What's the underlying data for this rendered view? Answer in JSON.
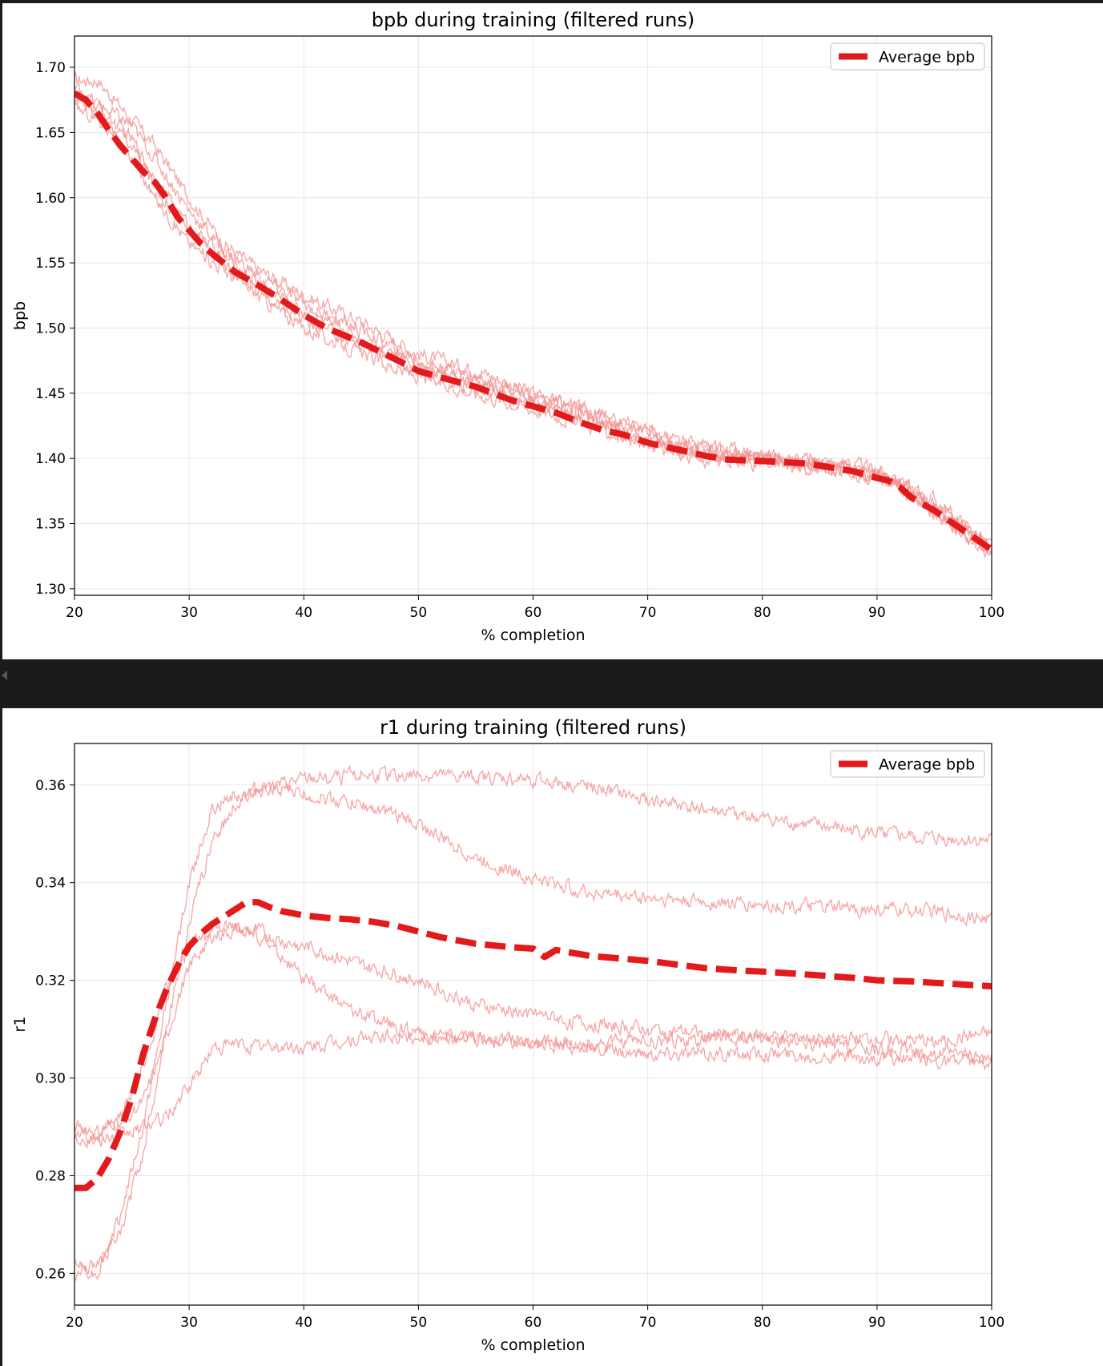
{
  "charts": [
    {
      "type": "line",
      "title": "bpb during training (filtered runs)",
      "xlabel": "% completion",
      "ylabel": "bpb",
      "xlim": [
        20,
        100
      ],
      "ylim": [
        1.295,
        1.724
      ],
      "xticks": [
        20,
        30,
        40,
        50,
        60,
        70,
        80,
        90,
        100
      ],
      "yticks": [
        1.3,
        1.35,
        1.4,
        1.45,
        1.5,
        1.55,
        1.6,
        1.65,
        1.7
      ],
      "ytick_decimals": 2,
      "grid": true,
      "legend": {
        "position": "top-right",
        "label": "Average bpb"
      },
      "colors": {
        "average": "#e31a1c",
        "runs": "#f28d8d"
      },
      "chart_data": {
        "type": "line",
        "average": {
          "name": "Average bpb",
          "x": [
            20,
            21,
            22,
            23,
            24,
            25,
            26,
            27,
            28,
            29,
            30,
            31,
            32,
            34,
            36,
            38,
            40,
            42,
            45,
            48,
            50,
            52,
            55,
            58,
            60,
            62,
            64,
            66,
            68,
            70,
            72,
            75,
            77,
            80,
            82,
            84,
            86,
            88,
            90,
            91,
            92,
            93,
            95,
            97,
            100
          ],
          "y": [
            1.68,
            1.675,
            1.665,
            1.652,
            1.64,
            1.63,
            1.62,
            1.612,
            1.6,
            1.585,
            1.575,
            1.565,
            1.557,
            1.543,
            1.533,
            1.522,
            1.51,
            1.5,
            1.489,
            1.476,
            1.467,
            1.462,
            1.455,
            1.445,
            1.44,
            1.435,
            1.428,
            1.422,
            1.418,
            1.412,
            1.408,
            1.402,
            1.399,
            1.398,
            1.397,
            1.396,
            1.393,
            1.39,
            1.385,
            1.383,
            1.378,
            1.37,
            1.36,
            1.348,
            1.33
          ]
        },
        "runs": [
          {
            "x": [
              20,
              22,
              25,
              27,
              30,
              33,
              36,
              40,
              45,
              50,
              55,
              60,
              65,
              70,
              75,
              80,
              85,
              90,
              92,
              95,
              100
            ],
            "y": [
              1.69,
              1.69,
              1.66,
              1.64,
              1.6,
              1.565,
              1.545,
              1.525,
              1.505,
              1.48,
              1.468,
              1.45,
              1.435,
              1.42,
              1.408,
              1.402,
              1.398,
              1.392,
              1.382,
              1.368,
              1.332
            ]
          },
          {
            "x": [
              20,
              22,
              25,
              27,
              30,
              33,
              36,
              40,
              45,
              50,
              55,
              60,
              65,
              70,
              75,
              80,
              85,
              90,
              92,
              95,
              100
            ],
            "y": [
              1.675,
              1.67,
              1.645,
              1.615,
              1.578,
              1.555,
              1.535,
              1.512,
              1.492,
              1.472,
              1.458,
              1.445,
              1.432,
              1.415,
              1.405,
              1.4,
              1.396,
              1.387,
              1.378,
              1.362,
              1.33
            ]
          },
          {
            "x": [
              20,
              22,
              25,
              27,
              30,
              33,
              36,
              40,
              45,
              50,
              55,
              60,
              65,
              70,
              75,
              80,
              85,
              90,
              92,
              95,
              100
            ],
            "y": [
              1.68,
              1.665,
              1.63,
              1.6,
              1.565,
              1.545,
              1.525,
              1.5,
              1.48,
              1.462,
              1.45,
              1.438,
              1.425,
              1.41,
              1.398,
              1.396,
              1.392,
              1.386,
              1.378,
              1.36,
              1.325
            ]
          },
          {
            "x": [
              20,
              22,
              25,
              27,
              30,
              33,
              36,
              40,
              45,
              50,
              55,
              60,
              65,
              70,
              75,
              80,
              85,
              90,
              92,
              95,
              100
            ],
            "y": [
              1.685,
              1.672,
              1.655,
              1.63,
              1.59,
              1.56,
              1.54,
              1.518,
              1.498,
              1.475,
              1.462,
              1.448,
              1.436,
              1.42,
              1.41,
              1.403,
              1.397,
              1.39,
              1.38,
              1.365,
              1.333
            ]
          },
          {
            "x": [
              20,
              22,
              25,
              27,
              30,
              33,
              36,
              40,
              45,
              50,
              55,
              60,
              65,
              70,
              75,
              80,
              85,
              90,
              92,
              95,
              100
            ],
            "y": [
              1.67,
              1.66,
              1.64,
              1.61,
              1.575,
              1.55,
              1.53,
              1.505,
              1.488,
              1.468,
              1.455,
              1.442,
              1.428,
              1.412,
              1.402,
              1.398,
              1.394,
              1.388,
              1.376,
              1.358,
              1.328
            ]
          }
        ]
      }
    },
    {
      "type": "line",
      "title": "r1 during training (filtered runs)",
      "xlabel": "% completion",
      "ylabel": "r1",
      "xlim": [
        20,
        100
      ],
      "ylim": [
        0.2535,
        0.3685
      ],
      "xticks": [
        20,
        30,
        40,
        50,
        60,
        70,
        80,
        90,
        100
      ],
      "yticks": [
        0.26,
        0.28,
        0.3,
        0.32,
        0.34,
        0.36
      ],
      "ytick_decimals": 2,
      "grid": true,
      "legend": {
        "position": "top-right",
        "label": "Average bpb"
      },
      "colors": {
        "average": "#e31a1c",
        "runs": "#f28d8d"
      },
      "chart_data": {
        "type": "line",
        "average": {
          "name": "Average bpb",
          "x": [
            20,
            21,
            22,
            23,
            24,
            25,
            26,
            27,
            28,
            29,
            30,
            31,
            32,
            33,
            34,
            35,
            36,
            37,
            38,
            40,
            42,
            44,
            46,
            48,
            50,
            52,
            55,
            58,
            60,
            61,
            62,
            65,
            70,
            75,
            78,
            80,
            82,
            85,
            88,
            90,
            93,
            95,
            100
          ],
          "y": [
            0.2775,
            0.2775,
            0.2795,
            0.2835,
            0.289,
            0.296,
            0.305,
            0.312,
            0.318,
            0.323,
            0.327,
            0.3295,
            0.3315,
            0.333,
            0.3345,
            0.336,
            0.336,
            0.335,
            0.3342,
            0.3333,
            0.3328,
            0.3325,
            0.332,
            0.3312,
            0.33,
            0.3288,
            0.3275,
            0.3268,
            0.3265,
            0.3248,
            0.3262,
            0.325,
            0.324,
            0.3225,
            0.322,
            0.3218,
            0.3215,
            0.321,
            0.3205,
            0.32,
            0.3198,
            0.3195,
            0.3188
          ]
        },
        "runs": [
          {
            "x": [
              20,
              22,
              24,
              26,
              28,
              30,
              32,
              34,
              36,
              38,
              40,
              45,
              50,
              55,
              60,
              65,
              70,
              75,
              80,
              85,
              90,
              95,
              100
            ],
            "y": [
              0.262,
              0.26,
              0.272,
              0.29,
              0.315,
              0.34,
              0.355,
              0.358,
              0.359,
              0.36,
              0.361,
              0.362,
              0.362,
              0.3615,
              0.361,
              0.3595,
              0.357,
              0.355,
              0.353,
              0.3515,
              0.35,
              0.349,
              0.3485
            ]
          },
          {
            "x": [
              20,
              22,
              24,
              26,
              28,
              30,
              32,
              34,
              36,
              38,
              40,
              45,
              50,
              55,
              60,
              65,
              70,
              75,
              80,
              85,
              90,
              95,
              100
            ],
            "y": [
              0.26,
              0.262,
              0.268,
              0.285,
              0.31,
              0.332,
              0.348,
              0.356,
              0.359,
              0.3595,
              0.358,
              0.356,
              0.352,
              0.345,
              0.341,
              0.338,
              0.337,
              0.336,
              0.3355,
              0.335,
              0.3345,
              0.334,
              0.3325
            ]
          },
          {
            "x": [
              20,
              22,
              24,
              26,
              28,
              30,
              32,
              34,
              36,
              38,
              40,
              45,
              50,
              55,
              60,
              65,
              70,
              75,
              80,
              85,
              90,
              95,
              100
            ],
            "y": [
              0.288,
              0.288,
              0.292,
              0.302,
              0.318,
              0.327,
              0.33,
              0.331,
              0.329,
              0.325,
              0.32,
              0.313,
              0.309,
              0.308,
              0.307,
              0.306,
              0.305,
              0.305,
              0.305,
              0.3045,
              0.304,
              0.3035,
              0.303
            ]
          },
          {
            "x": [
              20,
              22,
              24,
              26,
              28,
              30,
              32,
              34,
              36,
              38,
              40,
              45,
              50,
              55,
              60,
              65,
              70,
              75,
              80,
              85,
              90,
              95,
              100
            ],
            "y": [
              0.29,
              0.289,
              0.291,
              0.295,
              0.308,
              0.323,
              0.329,
              0.33,
              0.33,
              0.328,
              0.327,
              0.323,
              0.32,
              0.315,
              0.313,
              0.311,
              0.31,
              0.309,
              0.3085,
              0.308,
              0.308,
              0.3075,
              0.309
            ]
          },
          {
            "x": [
              20,
              22,
              24,
              26,
              28,
              30,
              32,
              34,
              36,
              38,
              40,
              45,
              50,
              55,
              60,
              65,
              70,
              75,
              80,
              85,
              90,
              95,
              100
            ],
            "y": [
              0.288,
              0.287,
              0.288,
              0.29,
              0.292,
              0.298,
              0.306,
              0.307,
              0.3065,
              0.3065,
              0.306,
              0.308,
              0.3085,
              0.308,
              0.3075,
              0.307,
              0.3075,
              0.308,
              0.308,
              0.307,
              0.306,
              0.305,
              0.304
            ]
          }
        ]
      }
    }
  ]
}
